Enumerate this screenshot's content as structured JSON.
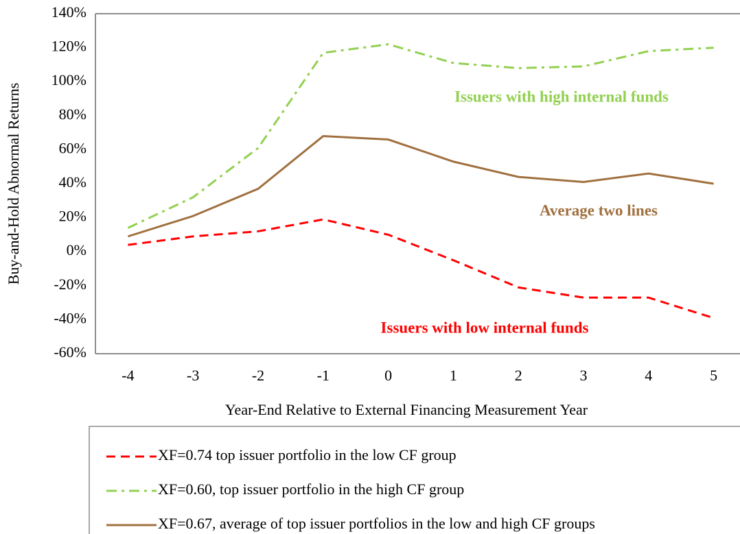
{
  "chart_data": {
    "type": "line",
    "xlabel": "Year-End Relative to External Financing Measurement Year",
    "ylabel": "Buy-and-Hold Abnormal Returns",
    "categories": [
      "-4",
      "-3",
      "-2",
      "-1",
      "0",
      "1",
      "2",
      "3",
      "4",
      "5"
    ],
    "series": [
      {
        "name": "XF=0.74 top issuer portfolio in the low CF group",
        "color": "#ff0000",
        "dash": "dashed",
        "values": [
          4,
          9,
          12,
          19,
          10,
          -5,
          -21,
          -27,
          -27,
          -39
        ]
      },
      {
        "name": "XF=0.60, top issuer portfolio in the high CF group",
        "color": "#92d050",
        "dash": "dashdot",
        "values": [
          14,
          32,
          61,
          117,
          122,
          111,
          108,
          109,
          118,
          120
        ]
      },
      {
        "name": "XF=0.67, average of top issuer portfolios in the low and high CF groups",
        "color": "#a0703f",
        "dash": "solid",
        "values": [
          9,
          21,
          37,
          68,
          66,
          53,
          44,
          41,
          46,
          40
        ]
      }
    ],
    "ylim": [
      -60,
      140
    ],
    "yticks": [
      {
        "value": -60,
        "label": "-60%"
      },
      {
        "value": -40,
        "label": "-40%"
      },
      {
        "value": -20,
        "label": "-20%"
      },
      {
        "value": 0,
        "label": "0%"
      },
      {
        "value": 20,
        "label": "20%"
      },
      {
        "value": 40,
        "label": "40%"
      },
      {
        "value": 60,
        "label": "60%"
      },
      {
        "value": 80,
        "label": "80%"
      },
      {
        "value": 100,
        "label": "100%"
      },
      {
        "value": 120,
        "label": "120%"
      },
      {
        "value": 140,
        "label": "140%"
      }
    ],
    "annotations": [
      {
        "text": "Issuers with high internal funds",
        "color": "#92d050"
      },
      {
        "text": "Average two lines",
        "color": "#a0703f"
      },
      {
        "text": "Issuers with low internal funds",
        "color": "#ff0000"
      }
    ],
    "grid": false,
    "legend": "bottom"
  }
}
